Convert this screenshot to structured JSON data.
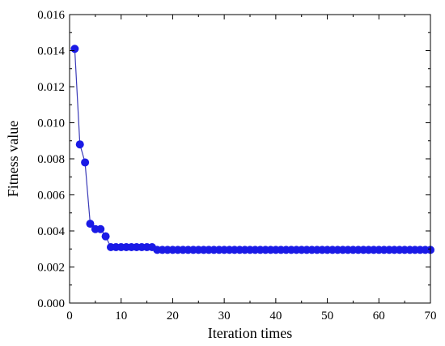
{
  "chart_data": {
    "type": "line",
    "title": "",
    "xlabel": "Iteration times",
    "ylabel": "Fitness value",
    "xlim": [
      0,
      70
    ],
    "ylim": [
      0,
      0.016
    ],
    "x_ticks": [
      0,
      10,
      20,
      30,
      40,
      50,
      60,
      70
    ],
    "x_tick_labels": [
      "0",
      "10",
      "20",
      "30",
      "40",
      "50",
      "60",
      "70"
    ],
    "y_ticks": [
      0,
      0.002,
      0.004,
      0.006,
      0.008,
      0.01,
      0.012,
      0.014,
      0.016
    ],
    "y_tick_labels": [
      "0.000",
      "0.002",
      "0.004",
      "0.006",
      "0.008",
      "0.010",
      "0.012",
      "0.014",
      "0.016"
    ],
    "grid": false,
    "legend": "none",
    "series": [
      {
        "color": "#1a1ae6",
        "line_color": "#3a3ab8",
        "marker": "circle",
        "x": [
          1,
          2,
          3,
          4,
          5,
          6,
          7,
          8,
          9,
          10,
          11,
          12,
          13,
          14,
          15,
          16,
          17,
          18,
          19,
          20,
          21,
          22,
          23,
          24,
          25,
          26,
          27,
          28,
          29,
          30,
          31,
          32,
          33,
          34,
          35,
          36,
          37,
          38,
          39,
          40,
          41,
          42,
          43,
          44,
          45,
          46,
          47,
          48,
          49,
          50,
          51,
          52,
          53,
          54,
          55,
          56,
          57,
          58,
          59,
          60,
          61,
          62,
          63,
          64,
          65,
          66,
          67,
          68,
          69,
          70
        ],
        "y": [
          0.0141,
          0.0088,
          0.0078,
          0.0044,
          0.0041,
          0.0041,
          0.0037,
          0.0031,
          0.0031,
          0.0031,
          0.0031,
          0.0031,
          0.0031,
          0.0031,
          0.0031,
          0.0031,
          0.00295,
          0.00295,
          0.00295,
          0.00295,
          0.00295,
          0.00295,
          0.00295,
          0.00295,
          0.00295,
          0.00295,
          0.00295,
          0.00295,
          0.00295,
          0.00295,
          0.00295,
          0.00295,
          0.00295,
          0.00295,
          0.00295,
          0.00295,
          0.00295,
          0.00295,
          0.00295,
          0.00295,
          0.00295,
          0.00295,
          0.00295,
          0.00295,
          0.00295,
          0.00295,
          0.00295,
          0.00295,
          0.00295,
          0.00295,
          0.00295,
          0.00295,
          0.00295,
          0.00295,
          0.00295,
          0.00295,
          0.00295,
          0.00295,
          0.00295,
          0.00295,
          0.00295,
          0.00295,
          0.00295,
          0.00295,
          0.00295,
          0.00295,
          0.00295,
          0.00295,
          0.00295,
          0.00295
        ]
      }
    ]
  }
}
